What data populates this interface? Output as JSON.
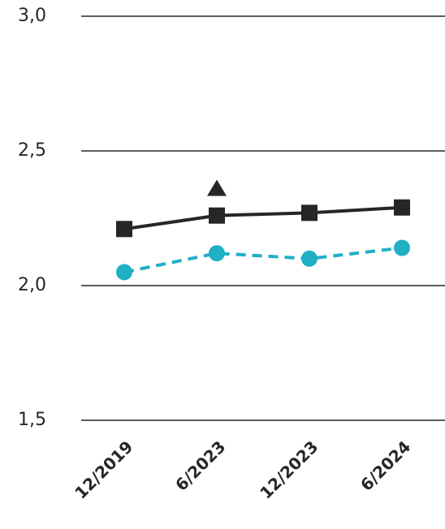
{
  "chart_data": {
    "type": "line",
    "categories": [
      "12/2019",
      "6/2023",
      "12/2023",
      "6/2024"
    ],
    "series": [
      {
        "color": "#262626",
        "marker": "square",
        "dashed": false,
        "values": [
          2.21,
          2.26,
          2.27,
          2.29
        ]
      },
      {
        "color": "#1fb0c6",
        "marker": "circle",
        "dashed": true,
        "values": [
          2.05,
          2.12,
          2.1,
          2.14
        ]
      },
      {
        "color": "#262626",
        "marker": "triangle",
        "markers_only": true,
        "values": [
          null,
          2.36,
          null,
          null
        ]
      }
    ],
    "ylim": [
      1.5,
      3.0
    ],
    "yticks": [
      {
        "value": 1.5,
        "label": "1,5"
      },
      {
        "value": 2.0,
        "label": "2,0"
      },
      {
        "value": 2.5,
        "label": "2,5"
      },
      {
        "value": 3.0,
        "label": "3,0"
      }
    ],
    "grid": true
  }
}
